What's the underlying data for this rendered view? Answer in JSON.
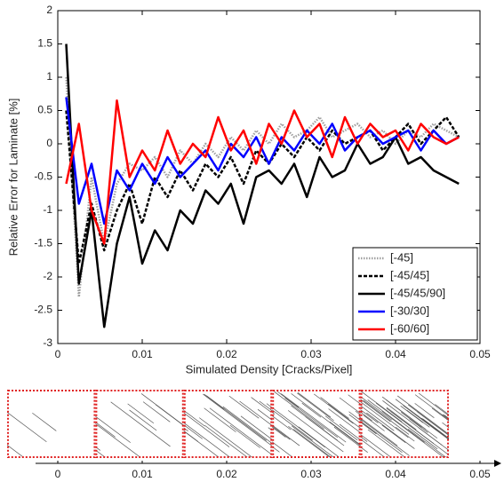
{
  "chart_data": [
    {
      "type": "line",
      "xlabel": "Simulated Density [Cracks/Pixel]",
      "ylabel": "Relative Error for Laminate [%]",
      "xlim": [
        0,
        0.05
      ],
      "xticks": [
        0,
        0.01,
        0.02,
        0.03,
        0.04,
        0.05
      ],
      "ylim": [
        -3,
        2
      ],
      "yticks": [
        -3,
        -2.5,
        -2,
        -1.5,
        -1,
        -0.5,
        0,
        0.5,
        1,
        1.5,
        2
      ],
      "grid": false,
      "legend": "lower right",
      "x": [
        0.001,
        0.0025,
        0.004,
        0.0055,
        0.007,
        0.0085,
        0.01,
        0.0115,
        0.013,
        0.0145,
        0.016,
        0.0175,
        0.019,
        0.0205,
        0.022,
        0.0235,
        0.025,
        0.0265,
        0.028,
        0.0295,
        0.031,
        0.0325,
        0.034,
        0.0355,
        0.037,
        0.0385,
        0.04,
        0.0415,
        0.043,
        0.0445,
        0.046,
        0.0475
      ],
      "series": [
        {
          "name": "[-45]",
          "color": "#a0a0a0",
          "style": "dotted",
          "width": 2.5,
          "values": [
            1.0,
            -2.3,
            -0.5,
            -1.5,
            -0.6,
            -0.3,
            -0.4,
            -0.2,
            -0.5,
            -0.1,
            -0.3,
            0.0,
            -0.2,
            0.1,
            -0.1,
            0.2,
            0.0,
            0.3,
            0.1,
            0.2,
            0.4,
            0.1,
            0.2,
            0.3,
            0.1,
            0.2,
            0.0,
            0.2,
            0.1,
            0.3,
            0.2,
            0.1
          ]
        },
        {
          "name": "[-45/45]",
          "color": "#000000",
          "style": "dashed",
          "width": 2.5,
          "values": [
            0.5,
            -1.8,
            -0.9,
            -1.6,
            -1.0,
            -0.6,
            -1.2,
            -0.5,
            -0.8,
            -0.4,
            -0.7,
            -0.3,
            -0.5,
            -0.2,
            -0.6,
            -0.1,
            -0.3,
            0.0,
            -0.2,
            0.1,
            -0.1,
            0.2,
            0.0,
            0.1,
            0.2,
            -0.1,
            0.1,
            0.3,
            0.0,
            0.2,
            0.4,
            0.1
          ]
        },
        {
          "name": "[-45/45/90]",
          "color": "#000000",
          "style": "solid",
          "width": 2.5,
          "values": [
            1.5,
            -2.1,
            -1.0,
            -2.75,
            -1.5,
            -0.8,
            -1.8,
            -1.3,
            -1.6,
            -1.0,
            -1.2,
            -0.7,
            -0.9,
            -0.6,
            -1.2,
            -0.5,
            -0.4,
            -0.6,
            -0.3,
            -0.8,
            -0.2,
            -0.5,
            -0.4,
            0.0,
            -0.3,
            -0.2,
            0.1,
            -0.3,
            -0.2,
            -0.4,
            -0.5,
            -0.6
          ]
        },
        {
          "name": "[-30/30]",
          "color": "#0000ff",
          "style": "solid",
          "width": 2.5,
          "values": [
            0.7,
            -0.9,
            -0.3,
            -1.2,
            -0.4,
            -0.7,
            -0.3,
            -0.6,
            -0.2,
            -0.5,
            -0.3,
            -0.1,
            -0.4,
            0.0,
            -0.2,
            0.1,
            -0.3,
            0.1,
            -0.1,
            0.2,
            0.0,
            0.3,
            -0.1,
            0.1,
            0.2,
            0.0,
            0.1,
            0.2,
            -0.1,
            0.2,
            0.0,
            0.1
          ]
        },
        {
          "name": "[-60/60]",
          "color": "#ff0000",
          "style": "solid",
          "width": 2.5,
          "values": [
            -0.6,
            0.3,
            -1.0,
            -1.5,
            0.65,
            -0.5,
            -0.1,
            -0.4,
            0.2,
            -0.3,
            0.0,
            -0.2,
            0.4,
            -0.1,
            0.2,
            -0.3,
            0.3,
            0.0,
            0.5,
            0.1,
            0.3,
            -0.2,
            0.4,
            0.0,
            0.3,
            0.1,
            0.2,
            -0.1,
            0.3,
            0.1,
            0.0,
            0.1
          ]
        }
      ]
    },
    {
      "type": "image-strip",
      "xlim": [
        0,
        0.05
      ],
      "xticks": [
        0,
        0.01,
        0.02,
        0.03,
        0.04,
        0.05
      ]
    }
  ]
}
